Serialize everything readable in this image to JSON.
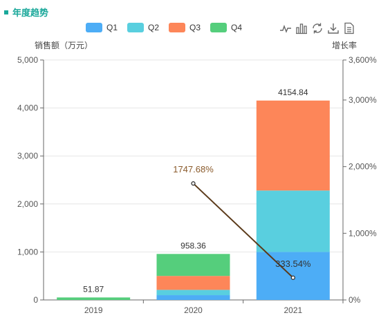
{
  "header": {
    "title": "年度趋势"
  },
  "toolbox": {
    "icons": [
      "line-chart-icon",
      "bar-chart-icon",
      "restore-icon",
      "download-icon",
      "data-view-icon"
    ]
  },
  "colors": {
    "title": "#1aa89a",
    "q1": "#4dadf6",
    "q2": "#59cfdf",
    "q3": "#fd8659",
    "q4": "#55ce7c",
    "line": "#5b3a1a"
  },
  "chart_data": {
    "type": "bar",
    "stacked": true,
    "categories": [
      "2019",
      "2020",
      "2021"
    ],
    "series": [
      {
        "name": "Q1",
        "values": [
          0,
          100,
          1000
        ]
      },
      {
        "name": "Q2",
        "values": [
          0,
          110,
          1280
        ]
      },
      {
        "name": "Q3",
        "values": [
          0,
          290,
          1874.84
        ]
      },
      {
        "name": "Q4",
        "values": [
          51.87,
          458.36,
          0
        ]
      }
    ],
    "totals": [
      "51.87",
      "958.36",
      "4154.84"
    ],
    "line_series": {
      "name": "增长率",
      "values": [
        null,
        1747.68,
        333.54
      ],
      "labels": [
        "",
        "1747.68%",
        "333.54%"
      ]
    },
    "ylabel": "销售额（万元）",
    "ylabel_right": "增长率",
    "ylim": [
      0,
      5000
    ],
    "ylim_right": [
      0,
      3600
    ],
    "yticks": [
      "0",
      "1,000",
      "2,000",
      "3,000",
      "4,000",
      "5,000"
    ],
    "yticks_right": [
      "0%",
      "1,000%",
      "2,000%",
      "3,000%",
      "3,600%"
    ],
    "legend_position": "top",
    "grid": true
  }
}
